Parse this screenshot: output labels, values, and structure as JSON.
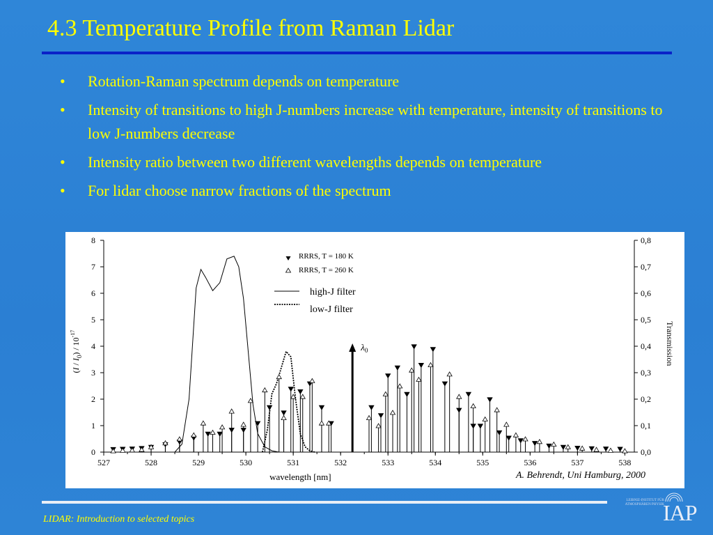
{
  "slide": {
    "title": "4.3 Temperature Profile from Raman Lidar",
    "bullets": [
      "Rotation-Raman spectrum depends on temperature",
      "Intensity of transitions to high J-numbers increase with temperature, intensity of transitions to low J-numbers decrease",
      "Intensity ratio between two different wavelengths depends on temperature",
      "For lidar choose narrow fractions of the spectrum"
    ],
    "bullet_glyph": "•",
    "credit": "A. Behrendt, Uni Hamburg, 2000",
    "footer": "LIDAR: Introduction to selected topics",
    "logo_text": "IAP",
    "logo_small_text": "LEIBNIZ-INSTITUT FÜR ATMOSPHÄREN PHYSIK",
    "colors": {
      "background": "#2e84d6",
      "text": "#ffff00",
      "title_rule": "#0a22c8"
    }
  },
  "chart_data": {
    "type": "scatter",
    "xlabel": "wavelength [nm]",
    "ylabel": "(I / I0) / 10^-17",
    "ylabel_parts": [
      "(",
      "I",
      " / ",
      "I",
      "0",
      ")   /   10",
      "-17"
    ],
    "y2label": "Transmission",
    "xlim": [
      527,
      538.2
    ],
    "ylim": [
      0,
      8
    ],
    "y2lim": [
      0,
      0.8
    ],
    "xticks": [
      "527",
      "528",
      "529",
      "530",
      "531",
      "532",
      "533",
      "534",
      "535",
      "536",
      "537",
      "538"
    ],
    "yticks": [
      "0",
      "1",
      "2",
      "3",
      "4",
      "5",
      "6",
      "7",
      "8"
    ],
    "y2ticks": [
      "0,0",
      "0,1",
      "0,2",
      "0,3",
      "0,4",
      "0,5",
      "0,6",
      "0,7",
      "0,8"
    ],
    "legend": {
      "entries": [
        "RRRS, T = 180 K",
        "RRRS, T = 260 K",
        "high-J filter",
        "low-J filter"
      ]
    },
    "lambda0": {
      "label": "λ0",
      "x": 532.25,
      "y": 4.0
    },
    "series": [
      {
        "name": "RRRS, T = 180 K",
        "marker": "filled-down-triangle",
        "points": [
          [
            527.2,
            0.02
          ],
          [
            527.4,
            0.03
          ],
          [
            527.6,
            0.04
          ],
          [
            527.8,
            0.06
          ],
          [
            528.0,
            0.1
          ],
          [
            528.3,
            0.2
          ],
          [
            528.6,
            0.3
          ],
          [
            528.9,
            0.45
          ],
          [
            529.2,
            0.6
          ],
          [
            529.45,
            0.6
          ],
          [
            529.7,
            0.75
          ],
          [
            529.95,
            0.75
          ],
          [
            530.25,
            1.0
          ],
          [
            530.5,
            1.6
          ],
          [
            530.8,
            1.4
          ],
          [
            530.95,
            2.3
          ],
          [
            531.15,
            2.2
          ],
          [
            531.35,
            2.5
          ],
          [
            531.6,
            1.6
          ],
          [
            531.8,
            1.0
          ],
          [
            532.65,
            1.6
          ],
          [
            532.85,
            1.3
          ],
          [
            533.0,
            2.8
          ],
          [
            533.2,
            3.1
          ],
          [
            533.4,
            2.1
          ],
          [
            533.55,
            3.9
          ],
          [
            533.7,
            3.2
          ],
          [
            533.95,
            3.8
          ],
          [
            534.2,
            2.5
          ],
          [
            534.5,
            1.5
          ],
          [
            534.7,
            2.1
          ],
          [
            534.8,
            0.9
          ],
          [
            534.95,
            0.9
          ],
          [
            535.15,
            1.9
          ],
          [
            535.35,
            0.65
          ],
          [
            535.55,
            0.45
          ],
          [
            535.8,
            0.35
          ],
          [
            536.1,
            0.25
          ],
          [
            536.4,
            0.15
          ],
          [
            536.7,
            0.1
          ],
          [
            537.0,
            0.07
          ],
          [
            537.3,
            0.05
          ],
          [
            537.6,
            0.04
          ],
          [
            537.9,
            0.03
          ]
        ]
      },
      {
        "name": "RRRS, T = 260 K",
        "marker": "open-up-triangle",
        "points": [
          [
            527.2,
            0.05
          ],
          [
            527.4,
            0.07
          ],
          [
            527.6,
            0.08
          ],
          [
            527.8,
            0.1
          ],
          [
            528.0,
            0.2
          ],
          [
            528.3,
            0.35
          ],
          [
            528.6,
            0.5
          ],
          [
            528.9,
            0.65
          ],
          [
            529.1,
            1.1
          ],
          [
            529.3,
            0.75
          ],
          [
            529.5,
            0.95
          ],
          [
            529.7,
            1.55
          ],
          [
            529.95,
            1.05
          ],
          [
            530.1,
            1.95
          ],
          [
            530.4,
            2.35
          ],
          [
            530.7,
            2.85
          ],
          [
            530.8,
            1.3
          ],
          [
            531.0,
            2.1
          ],
          [
            531.2,
            2.1
          ],
          [
            531.4,
            2.7
          ],
          [
            531.6,
            1.1
          ],
          [
            531.75,
            1.1
          ],
          [
            532.6,
            1.3
          ],
          [
            532.8,
            1.0
          ],
          [
            532.95,
            2.2
          ],
          [
            533.1,
            1.5
          ],
          [
            533.25,
            2.5
          ],
          [
            533.5,
            3.1
          ],
          [
            533.65,
            2.75
          ],
          [
            533.9,
            3.3
          ],
          [
            534.3,
            2.95
          ],
          [
            534.5,
            2.1
          ],
          [
            534.8,
            1.75
          ],
          [
            535.05,
            1.25
          ],
          [
            535.3,
            1.6
          ],
          [
            535.5,
            1.05
          ],
          [
            535.7,
            0.65
          ],
          [
            535.9,
            0.5
          ],
          [
            536.2,
            0.4
          ],
          [
            536.5,
            0.3
          ],
          [
            536.8,
            0.2
          ],
          [
            537.1,
            0.15
          ],
          [
            537.4,
            0.1
          ],
          [
            537.7,
            0.07
          ],
          [
            538.0,
            0.05
          ]
        ]
      }
    ],
    "filters": [
      {
        "name": "high-J filter",
        "style": "solid",
        "axis": "y2",
        "x": [
          528.5,
          528.65,
          528.8,
          528.95,
          529.05,
          529.15,
          529.3,
          529.45,
          529.6,
          529.75,
          529.85,
          529.95,
          530.05,
          530.15,
          530.25,
          530.4,
          530.55,
          530.7
        ],
        "y": [
          0.0,
          0.03,
          0.2,
          0.62,
          0.69,
          0.66,
          0.61,
          0.64,
          0.73,
          0.74,
          0.7,
          0.58,
          0.38,
          0.18,
          0.07,
          0.02,
          0.005,
          0.0
        ]
      },
      {
        "name": "low-J filter",
        "style": "dotted",
        "axis": "y2",
        "x": [
          530.35,
          530.45,
          530.55,
          530.65,
          530.75,
          530.85,
          530.95,
          531.05,
          531.15,
          531.25,
          531.35,
          531.45
        ],
        "y": [
          0.0,
          0.08,
          0.22,
          0.26,
          0.32,
          0.38,
          0.36,
          0.2,
          0.07,
          0.02,
          0.005,
          0.0
        ]
      }
    ]
  }
}
